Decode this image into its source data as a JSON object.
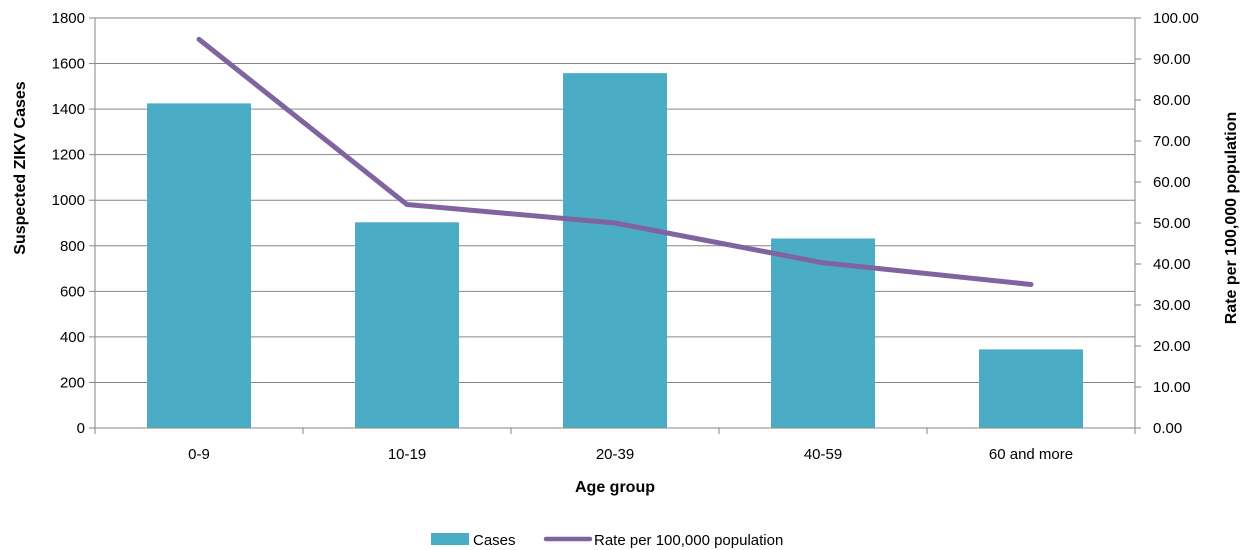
{
  "chart_data": {
    "type": "bar",
    "categories": [
      "0-9",
      "10-19",
      "20-39",
      "40-59",
      "60 and more"
    ],
    "series": [
      {
        "name": "Cases",
        "kind": "bar",
        "axis": "left",
        "color": "#4BACC6",
        "values": [
          1425,
          903,
          1558,
          832,
          345
        ]
      },
      {
        "name": "Rate per 100,000 population",
        "kind": "line",
        "axis": "right",
        "color": "#8064A2",
        "values": [
          94.8,
          54.5,
          50.0,
          40.3,
          35.0
        ]
      }
    ],
    "xlabel": "Age group",
    "ylabel": "Suspected ZIKV Cases",
    "y2label": "Rate per 100,000 population",
    "ylim": [
      0,
      1800
    ],
    "y2lim": [
      0,
      100
    ],
    "yticks": [
      "0",
      "200",
      "400",
      "600",
      "800",
      "1000",
      "1200",
      "1400",
      "1600",
      "1800"
    ],
    "y2ticks": [
      "0.00",
      "10.00",
      "20.00",
      "30.00",
      "40.00",
      "50.00",
      "60.00",
      "70.00",
      "80.00",
      "90.00",
      "100.00"
    ],
    "grid": true,
    "legend_position": "bottom"
  }
}
